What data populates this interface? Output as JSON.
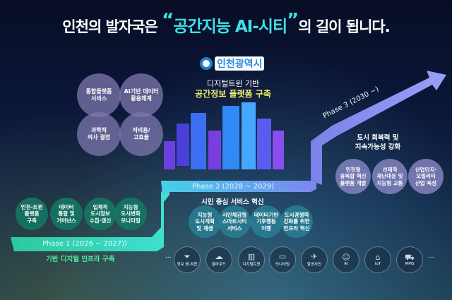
{
  "title": {
    "prefix": "인천의 발자국은",
    "open_quote": "“",
    "highlight": "공간지능 AI-시티",
    "close_quote": "”",
    "suffix": "의 길이 됩니다."
  },
  "logo": {
    "text": "인천광역시"
  },
  "center": {
    "line1": "디지털트윈 기반",
    "line2": "공간정보 플랫폼 구축"
  },
  "top_circles": [
    "통합플랫폼\n서비스",
    "AI기반 데이터\n활용체계",
    "과학적\n의사 결정",
    "저비용/\n고효율"
  ],
  "phase1": {
    "label": "Phase 1 (2026 ~ 2027))",
    "subtitle": "기반 디지털 인프라 구축",
    "items": [
      "인천-트윈\n플랫폼\n구축",
      "데이터\n통합 및\n거버넌스",
      "입체적\n도시정보\n수집·갱신",
      "지능형\n도시변화\n모니터링"
    ]
  },
  "phase2": {
    "label": "Phase 2 (2028 ~ 2029)",
    "subtitle": "시민 중심 서비스 혁신",
    "items": [
      "지능형\n도시계획\n및 재생",
      "시민체감형\n스마트시티\n서비스",
      "데이터기반\n기후행동\n이행",
      "도시경쟁력\n강화를 위한\n인프라 혁신"
    ]
  },
  "phase3": {
    "label": "Phase 3 (2030 ~)",
    "subtitle_line1": "도시 회복력 및",
    "subtitle_line2": "지속가능성 강화",
    "items": [
      "인천형\n융복합 혁신\n플랫폼 개발",
      "선제적\n재난대응 및\n지능형 교통",
      "산업단지·\n모빌리티\n산업 육성"
    ]
  },
  "tech": {
    "ellipsis": "...",
    "items": [
      {
        "label": "정보 융·복합",
        "icon": "funnel-icon"
      },
      {
        "label": "클라우드",
        "icon": "cloud-icon"
      },
      {
        "label": "디지털트윈",
        "icon": "buildings-icon"
      },
      {
        "label": "모니터링",
        "icon": "monitor-icon"
      },
      {
        "label": "항공사진",
        "icon": "airplane-icon"
      },
      {
        "label": "AI",
        "icon": "ai-head-icon"
      },
      {
        "label": "IoT",
        "icon": "iot-router-icon"
      },
      {
        "label": "MMS",
        "icon": "vehicle-icon"
      }
    ]
  },
  "colors": {
    "accent": "#3fe0e8",
    "yellow": "#f4f36a",
    "phase1": "#2fd6b0",
    "phase2": "#6fa0ff",
    "phase3": "#8f92f0"
  }
}
